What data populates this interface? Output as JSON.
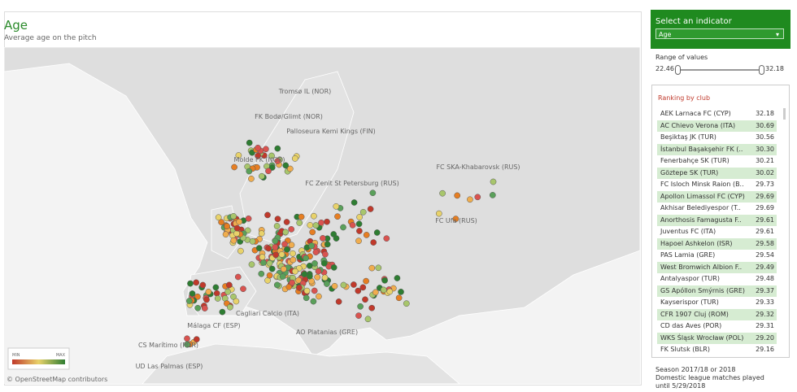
{
  "header": {
    "title": "Age",
    "subtitle": "Average age on the pitch"
  },
  "map": {
    "labels": [
      "Tromsø IL (NOR)",
      "FK Bodø/Glimt (NOR)",
      "Palloseura Kemi Kings (FIN)",
      "Molde FK (NOR)",
      "FC Zenit St Petersburg (RUS)",
      "FC SKA-Khabarovsk (RUS)",
      "FC Ufa (RUS)",
      "Cagliari Calcio (ITA)",
      "Málaga CF (ESP)",
      "AO Platanias (GRE)",
      "CS Marítimo (POR)",
      "UD Las Palmas (ESP)"
    ],
    "legend": {
      "min": "MIN",
      "max": "MAX"
    },
    "attribution": "© OpenStreetMap contributors"
  },
  "indicator": {
    "title": "Select an indicator",
    "selected": "Age"
  },
  "range": {
    "title": "Range of values",
    "min": "22.46",
    "max": "32.18"
  },
  "ranking": {
    "title": "Ranking by club",
    "rows": [
      [
        "AEK Larnaca FC (CYP)",
        "32.18"
      ],
      [
        "AC Chievo Verona (ITA)",
        "30.69"
      ],
      [
        "Beşiktaş JK (TUR)",
        "30.56"
      ],
      [
        "İstanbul Başakşehir FK (..",
        "30.30"
      ],
      [
        "Fenerbahçe SK (TUR)",
        "30.21"
      ],
      [
        "Göztepe SK (TUR)",
        "30.02"
      ],
      [
        "FC Isloch Minsk Raion (B..",
        "29.73"
      ],
      [
        "Apollon Limassol FC (CYP)",
        "29.69"
      ],
      [
        "Akhisar Belediyespor (T..",
        "29.69"
      ],
      [
        "Anorthosis Famagusta F..",
        "29.61"
      ],
      [
        "Juventus FC (ITA)",
        "29.61"
      ],
      [
        "Hapoel Ashkelon (ISR)",
        "29.58"
      ],
      [
        "PAS Lamia (GRE)",
        "29.54"
      ],
      [
        "West Bromwich Albion F..",
        "29.49"
      ],
      [
        "Antalyaspor (TUR)",
        "29.48"
      ],
      [
        "GS Apóllon Smýrnis (GRE)",
        "29.37"
      ],
      [
        "Kayserispor (TUR)",
        "29.33"
      ],
      [
        "CFR 1907 Cluj (ROM)",
        "29.32"
      ],
      [
        "CD das Aves (POR)",
        "29.31"
      ],
      [
        "WKS Śląsk Wrocław (POL)",
        "29.20"
      ],
      [
        "FK Slutsk (BLR)",
        "29.16"
      ]
    ]
  },
  "footnote": [
    "Season 2017/18 or 2018",
    "Domestic league matches played",
    "until 5/29/2018"
  ]
}
